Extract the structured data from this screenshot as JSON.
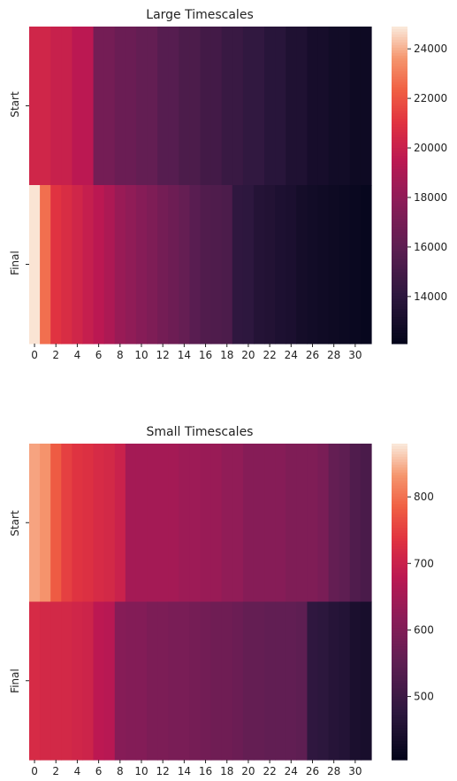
{
  "chart_data": [
    {
      "type": "heatmap",
      "title": "Large Timescales",
      "xlabel": "",
      "ylabel": "",
      "rows": [
        "Start",
        "Final"
      ],
      "columns": [
        0,
        1,
        2,
        3,
        4,
        5,
        6,
        7,
        8,
        9,
        10,
        11,
        12,
        13,
        14,
        15,
        16,
        17,
        18,
        19,
        20,
        21,
        22,
        23,
        24,
        25,
        26,
        27,
        28,
        29,
        30,
        31
      ],
      "x_tick_labels": [
        "0",
        "2",
        "4",
        "6",
        "8",
        "10",
        "12",
        "14",
        "16",
        "18",
        "20",
        "22",
        "24",
        "26",
        "28",
        "30"
      ],
      "values": [
        [
          20300,
          20300,
          20000,
          20000,
          19500,
          19500,
          16900,
          16900,
          16500,
          16500,
          16200,
          16200,
          15700,
          15700,
          15300,
          15300,
          14900,
          14900,
          14500,
          14500,
          14200,
          14200,
          13800,
          13800,
          13400,
          13400,
          13000,
          13000,
          12800,
          12800,
          12600,
          12600
        ],
        [
          24800,
          22700,
          21000,
          20700,
          20300,
          19900,
          19500,
          19000,
          18300,
          18000,
          17600,
          17300,
          16900,
          16600,
          16300,
          15800,
          15500,
          15400,
          15300,
          14100,
          14000,
          13600,
          13500,
          13300,
          13200,
          12900,
          12800,
          12700,
          12600,
          12500,
          12400,
          12300
        ]
      ],
      "colorbar": {
        "ticks": [
          14000,
          16000,
          18000,
          20000,
          22000,
          24000
        ],
        "range": [
          12100,
          24900
        ]
      },
      "colormap": "rocket"
    },
    {
      "type": "heatmap",
      "title": "Small Timescales",
      "xlabel": "",
      "ylabel": "",
      "rows": [
        "Start",
        "Final"
      ],
      "columns": [
        0,
        1,
        2,
        3,
        4,
        5,
        6,
        7,
        8,
        9,
        10,
        11,
        12,
        13,
        14,
        15,
        16,
        17,
        18,
        19,
        20,
        21,
        22,
        23,
        24,
        25,
        26,
        27,
        28,
        29,
        30,
        31
      ],
      "x_tick_labels": [
        "0",
        "2",
        "4",
        "6",
        "8",
        "10",
        "12",
        "14",
        "16",
        "18",
        "20",
        "22",
        "24",
        "26",
        "28",
        "30"
      ],
      "values": [
        [
          840,
          830,
          780,
          750,
          735,
          730,
          720,
          715,
          700,
          650,
          650,
          650,
          650,
          650,
          640,
          640,
          635,
          635,
          625,
          625,
          610,
          610,
          610,
          610,
          600,
          600,
          600,
          590,
          560,
          550,
          530,
          520
        ],
        [
          720,
          715,
          715,
          715,
          710,
          705,
          680,
          675,
          610,
          605,
          605,
          595,
          595,
          590,
          590,
          585,
          580,
          575,
          575,
          570,
          560,
          560,
          555,
          555,
          555,
          550,
          480,
          475,
          465,
          460,
          445,
          440
        ]
      ],
      "colorbar": {
        "ticks": [
          500,
          600,
          700,
          800
        ],
        "range": [
          405,
          880
        ]
      },
      "colormap": "rocket"
    }
  ]
}
